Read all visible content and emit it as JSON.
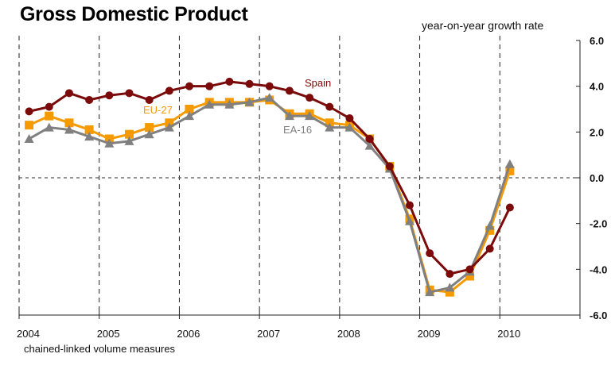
{
  "chart_data": {
    "type": "line",
    "title": "Gross Domestic Product",
    "ylabel": "year-on-year growth rate",
    "note": "chained-linked volume measures",
    "xlabel": "",
    "ylim": [
      -6.0,
      6.0
    ],
    "yticks": [
      "6.0",
      "4.0",
      "2.0",
      "0.0",
      "-2.0",
      "-4.0",
      "-6.0"
    ],
    "ytick_values": [
      6,
      4,
      2,
      0,
      -2,
      -4,
      -6
    ],
    "xticks": [
      "2004",
      "2005",
      "2006",
      "2007",
      "2008",
      "2009",
      "2010"
    ],
    "xlim": [
      2004,
      2011
    ],
    "x_start": 2004.125,
    "x_step": 0.25,
    "grid": "vertical dashed at years, horizontal dashed at 0",
    "series": [
      {
        "name": "Spain",
        "color": "#7B0A0A",
        "marker": "circle",
        "values": [
          2.9,
          3.1,
          3.7,
          3.4,
          3.6,
          3.7,
          3.4,
          3.8,
          4.0,
          4.0,
          4.2,
          4.1,
          4.0,
          3.8,
          3.5,
          3.1,
          2.6,
          1.7,
          0.5,
          -1.2,
          -3.3,
          -4.2,
          -4.0,
          -3.1,
          -1.3
        ]
      },
      {
        "name": "EU-27",
        "color": "#F59A00",
        "marker": "square",
        "values": [
          2.3,
          2.7,
          2.4,
          2.1,
          1.7,
          1.9,
          2.2,
          2.4,
          3.0,
          3.3,
          3.3,
          3.3,
          3.4,
          2.8,
          2.8,
          2.4,
          2.3,
          1.7,
          0.5,
          -1.8,
          -4.9,
          -5.0,
          -4.3,
          -2.3,
          0.3
        ]
      },
      {
        "name": "EA-16",
        "color": "#808080",
        "marker": "triangle",
        "values": [
          1.7,
          2.2,
          2.1,
          1.8,
          1.5,
          1.6,
          1.9,
          2.2,
          2.7,
          3.2,
          3.2,
          3.3,
          3.5,
          2.7,
          2.7,
          2.2,
          2.2,
          1.4,
          0.4,
          -1.9,
          -5.0,
          -4.8,
          -4.1,
          -2.1,
          0.6
        ]
      }
    ]
  }
}
